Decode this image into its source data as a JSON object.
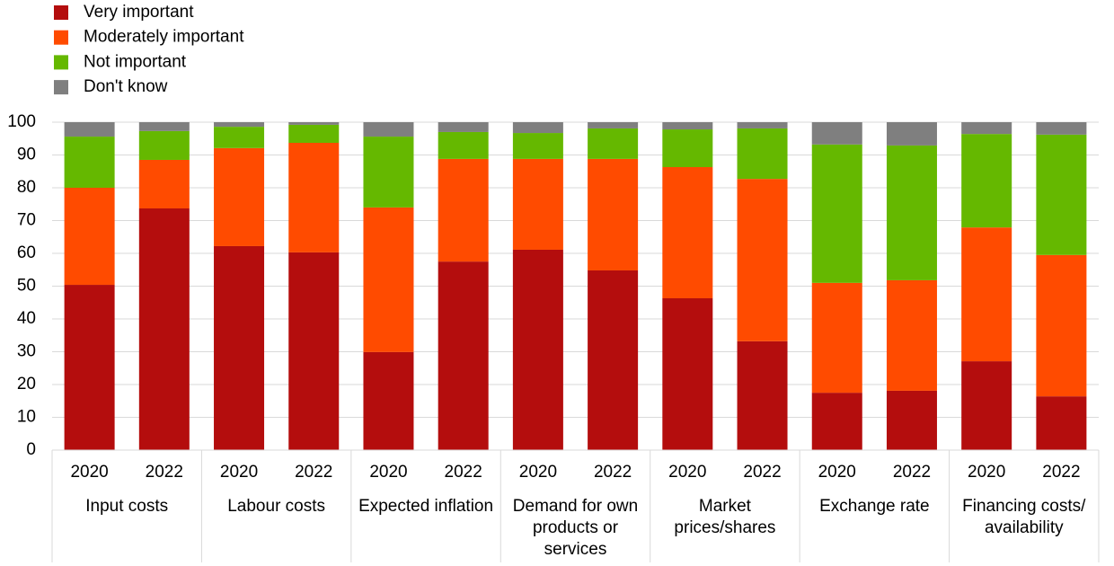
{
  "chart_data": {
    "type": "stacked_bar",
    "categories": [
      "2020",
      "2022",
      "2020",
      "2022",
      "2020",
      "2022",
      "2020",
      "2022",
      "2020",
      "2022",
      "2020",
      "2022",
      "2020",
      "2022"
    ],
    "groups": [
      "Input costs",
      "Labour costs",
      "Expected inflation",
      "Demand for own products or services",
      "Market prices/shares",
      "Exchange rate",
      "Financing costs/ availability"
    ],
    "series": [
      {
        "name": "Very important",
        "color": "#b40d0d",
        "values": [
          50.4,
          73.7,
          62.2,
          60.3,
          29.9,
          57.5,
          61.1,
          54.8,
          46.3,
          33.2,
          17.5,
          18.1,
          27.1,
          16.4
        ]
      },
      {
        "name": "Moderately important",
        "color": "#ff4b00",
        "values": [
          29.6,
          14.8,
          29.9,
          33.4,
          44.1,
          31.3,
          27.7,
          34.0,
          40.0,
          49.5,
          33.5,
          33.7,
          40.8,
          43.1
        ]
      },
      {
        "name": "Not important",
        "color": "#65b800",
        "values": [
          15.6,
          8.8,
          6.5,
          5.5,
          21.6,
          8.2,
          7.9,
          9.3,
          11.5,
          15.4,
          42.2,
          41.1,
          28.5,
          36.7
        ]
      },
      {
        "name": "Don't know",
        "color": "#7f7f7f",
        "values": [
          4.4,
          2.7,
          1.4,
          0.8,
          4.4,
          3.0,
          3.3,
          1.9,
          2.2,
          1.9,
          6.8,
          7.1,
          3.6,
          3.8
        ]
      }
    ],
    "ylim": [
      0,
      100
    ],
    "yticks": [
      0,
      10,
      20,
      30,
      40,
      50,
      60,
      70,
      80,
      90,
      100
    ],
    "grid": true,
    "legend": "top-left"
  }
}
